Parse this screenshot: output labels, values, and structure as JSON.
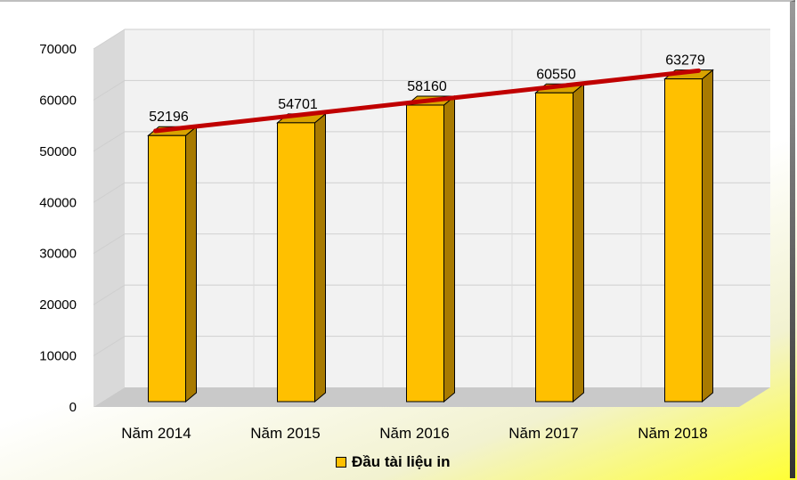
{
  "chart_data": {
    "type": "bar",
    "categories": [
      "Năm 2014",
      "Năm 2015",
      "Năm 2016",
      "Năm 2017",
      "Năm 2018"
    ],
    "series": [
      {
        "name": "Đầu tài liệu in",
        "values": [
          52196,
          54701,
          58160,
          60550,
          63279
        ]
      }
    ],
    "trendline": true,
    "ylim": [
      0,
      70000
    ],
    "yticks": [
      "0",
      "10000",
      "20000",
      "30000",
      "40000",
      "50000",
      "60000",
      "70000"
    ],
    "legend_position": "bottom",
    "grid": true,
    "colors": {
      "bar_front": "#ffc000",
      "bar_side": "#a87a00",
      "bar_top": "#d9a300",
      "trend": "#c00000"
    }
  },
  "legend": {
    "label": "Đầu tài liệu in"
  }
}
